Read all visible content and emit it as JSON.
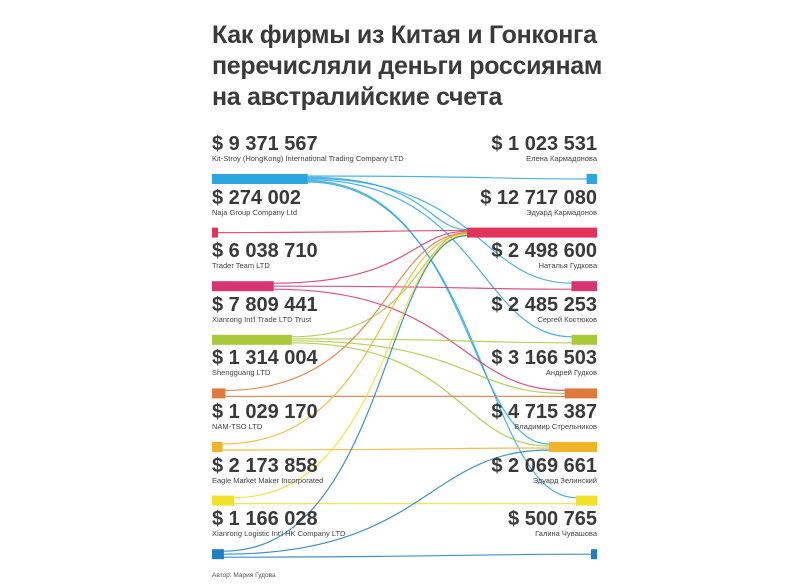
{
  "title_lines": [
    "Как фирмы из Китая и Гонконга",
    "перечисляли деньги россиянам",
    "на австралийские счета"
  ],
  "sources": [
    {
      "amount": "$ 9 371 567",
      "name": "Kit-Stroy (HongKong) International Trading Company LTD",
      "value": 9371567,
      "color": "#2ba6e0"
    },
    {
      "amount": "$ 274 002",
      "name": "Naja Group Company Ltd",
      "value": 274002,
      "color": "#e2345a"
    },
    {
      "amount": "$ 6 038 710",
      "name": "Trader Team LTD",
      "value": 6038710,
      "color": "#d9346f"
    },
    {
      "amount": "$ 7 809 441",
      "name": "Xianrong Int'l Trade LTD Trust",
      "value": 7809441,
      "color": "#a8c93a"
    },
    {
      "amount": "$ 1 314 004",
      "name": "Shengguang LTD",
      "value": 1314004,
      "color": "#e07a3c"
    },
    {
      "amount": "$ 1 029 170",
      "name": "NAM-TSO LTD",
      "value": 1029170,
      "color": "#f0b429"
    },
    {
      "amount": "$ 2 173 858",
      "name": "Eagle Market Maker Incorporated",
      "value": 2173858,
      "color": "#f2e12a"
    },
    {
      "amount": "$ 1 166 028",
      "name": "Xianrong Logistic Int'l HK Company LTD",
      "value": 1166028,
      "color": "#1f7fc2"
    }
  ],
  "recipients": [
    {
      "amount": "$ 1 023 531",
      "name": "Елена Кармадонова",
      "value": 1023531,
      "color": "#2ba6e0"
    },
    {
      "amount": "$ 12 717 080",
      "name": "Эдуард Кармадонов",
      "value": 12717080,
      "color": "#e2345a"
    },
    {
      "amount": "$ 2 498 600",
      "name": "Наталья Гудкова",
      "value": 2498600,
      "color": "#d9346f"
    },
    {
      "amount": "$ 2 485 253",
      "name": "Сергей Костюков",
      "value": 2485253,
      "color": "#a8c93a"
    },
    {
      "amount": "$ 3 166 503",
      "name": "Андрей Гудков",
      "value": 3166503,
      "color": "#e07a3c"
    },
    {
      "amount": "$ 4 715 387",
      "name": "Владимир Стрельников",
      "value": 4715387,
      "color": "#f0b429"
    },
    {
      "amount": "$ 2 069 661",
      "name": "Эдуард Зелинский",
      "value": 2069661,
      "color": "#f2e12a"
    },
    {
      "amount": "$ 500 765",
      "name": "Галина Чувашова",
      "value": 500765,
      "color": "#1f7fc2"
    }
  ],
  "flows": [
    [
      0,
      0
    ],
    [
      0,
      1
    ],
    [
      0,
      2
    ],
    [
      0,
      3
    ],
    [
      0,
      5
    ],
    [
      0,
      6
    ],
    [
      1,
      1
    ],
    [
      2,
      1
    ],
    [
      2,
      2
    ],
    [
      2,
      4
    ],
    [
      3,
      1
    ],
    [
      3,
      3
    ],
    [
      3,
      4
    ],
    [
      3,
      5
    ],
    [
      4,
      1
    ],
    [
      4,
      4
    ],
    [
      5,
      1
    ],
    [
      5,
      5
    ],
    [
      6,
      1
    ],
    [
      6,
      6
    ],
    [
      7,
      1
    ],
    [
      7,
      5
    ],
    [
      7,
      7
    ]
  ],
  "author": "Автор: Мария Гудова"
}
